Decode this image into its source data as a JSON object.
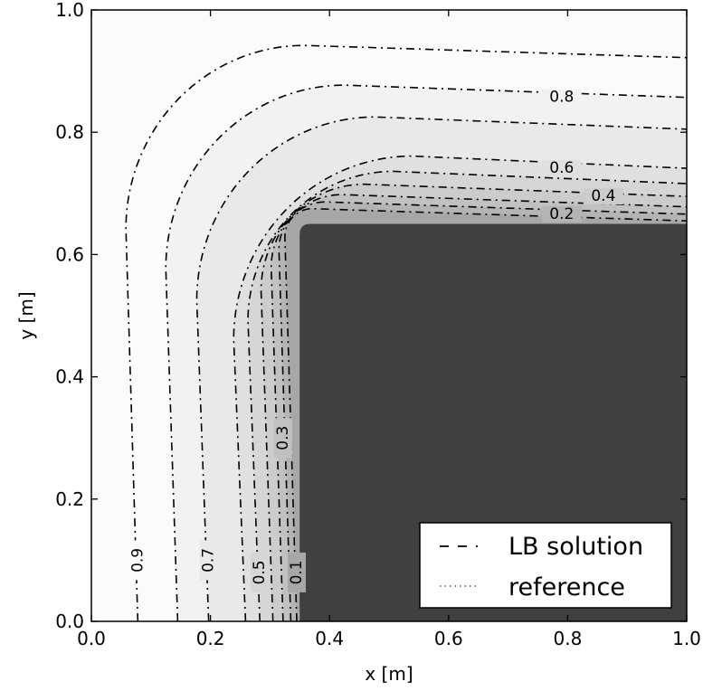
{
  "chart_data": {
    "type": "contour",
    "xlabel": "x [m]",
    "ylabel": "y [m]",
    "xlim": [
      0.0,
      1.0
    ],
    "ylim": [
      0.0,
      1.0
    ],
    "xticks": [
      "0.0",
      "0.2",
      "0.4",
      "0.6",
      "0.8",
      "1.0"
    ],
    "yticks": [
      "0.0",
      "0.2",
      "0.4",
      "0.6",
      "0.8",
      "1.0"
    ],
    "grid": false,
    "legend_position": "lower-right",
    "legend": [
      {
        "label": "LB solution",
        "style": "dashed"
      },
      {
        "label": "reference",
        "style": "dotted"
      }
    ],
    "inner_region": {
      "x_min": 0.35,
      "y_max": 0.65,
      "value": 0.0,
      "color": "#404040"
    },
    "levels": [
      {
        "level": 0.1,
        "x_offset": 0.345,
        "y_offset": 0.655,
        "label": "0.1"
      },
      {
        "level": 0.2,
        "x_offset": 0.335,
        "y_offset": 0.666,
        "label": "0.2"
      },
      {
        "level": 0.3,
        "x_offset": 0.322,
        "y_offset": 0.678,
        "label": "0.3"
      },
      {
        "level": 0.4,
        "x_offset": 0.305,
        "y_offset": 0.695,
        "label": "0.4"
      },
      {
        "level": 0.5,
        "x_offset": 0.283,
        "y_offset": 0.716,
        "label": "0.5"
      },
      {
        "level": 0.6,
        "x_offset": 0.259,
        "y_offset": 0.741,
        "label": "0.6"
      },
      {
        "level": 0.7,
        "x_offset": 0.197,
        "y_offset": 0.805,
        "label": "0.7"
      },
      {
        "level": 0.8,
        "x_offset": 0.145,
        "y_offset": 0.857,
        "label": "0.8"
      },
      {
        "level": 0.9,
        "x_offset": 0.078,
        "y_offset": 0.922,
        "label": "0.9"
      }
    ],
    "fill_colors": [
      "#404040",
      "#a7a7a7",
      "#b4b4b4",
      "#c1c1c1",
      "#cccccc",
      "#d6d6d6",
      "#e0e0e0",
      "#e9e9e9",
      "#f2f2f2",
      "#fbfbfb"
    ]
  }
}
